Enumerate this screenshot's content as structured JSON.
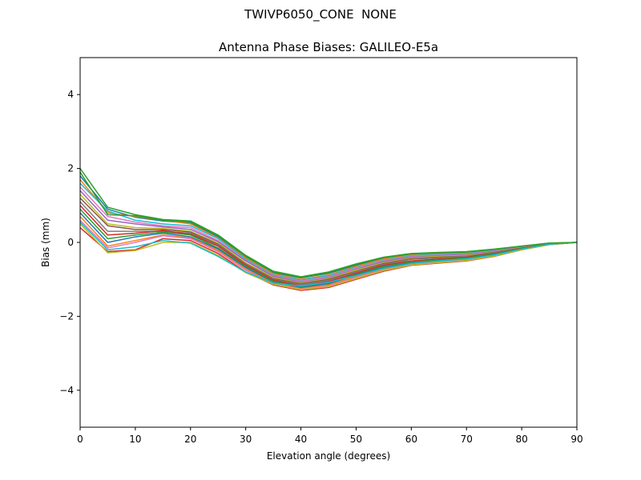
{
  "figure": {
    "suptitle": "TWIVP6050_CONE  NONE"
  },
  "chart_data": {
    "type": "line",
    "title": "Antenna Phase Biases: GALILEO-E5a",
    "xlabel": "Elevation angle (degrees)",
    "ylabel": "Bias (mm)",
    "xlim": [
      0,
      90
    ],
    "ylim": [
      -5,
      5
    ],
    "xticks": [
      0,
      10,
      20,
      30,
      40,
      50,
      60,
      70,
      80,
      90
    ],
    "yticks": [
      -4,
      -2,
      0,
      2,
      4
    ],
    "xtick_labels": [
      "0",
      "10",
      "20",
      "30",
      "40",
      "50",
      "60",
      "70",
      "80",
      "90"
    ],
    "ytick_labels": [
      "−4",
      "−2",
      "0",
      "2",
      "4"
    ],
    "grid": false,
    "legend": "none",
    "x": [
      0,
      5,
      10,
      15,
      20,
      25,
      30,
      35,
      40,
      45,
      50,
      55,
      60,
      65,
      70,
      75,
      80,
      85,
      90
    ],
    "series": [
      {
        "color": "#2ca02c",
        "values": [
          2.0,
          0.95,
          0.75,
          0.62,
          0.58,
          0.2,
          -0.35,
          -0.78,
          -0.93,
          -0.8,
          -0.58,
          -0.4,
          -0.3,
          -0.27,
          -0.25,
          -0.18,
          -0.1,
          -0.02,
          0.0
        ]
      },
      {
        "color": "#1f77b4",
        "values": [
          1.8,
          0.9,
          0.68,
          0.58,
          0.52,
          0.15,
          -0.4,
          -0.82,
          -0.96,
          -0.84,
          -0.62,
          -0.42,
          -0.32,
          -0.29,
          -0.27,
          -0.2,
          -0.11,
          -0.03,
          0.0
        ]
      },
      {
        "color": "#ff7f0e",
        "values": [
          1.7,
          0.8,
          0.7,
          0.6,
          0.5,
          0.12,
          -0.42,
          -0.85,
          -1.0,
          -0.88,
          -0.65,
          -0.45,
          -0.34,
          -0.3,
          -0.28,
          -0.21,
          -0.12,
          -0.03,
          0.0
        ]
      },
      {
        "color": "#17becf",
        "values": [
          1.6,
          0.85,
          0.6,
          0.5,
          0.45,
          0.1,
          -0.45,
          -0.88,
          -1.02,
          -0.9,
          -0.68,
          -0.48,
          -0.36,
          -0.32,
          -0.3,
          -0.22,
          -0.12,
          -0.03,
          0.0
        ]
      },
      {
        "color": "#e377c2",
        "values": [
          1.5,
          0.7,
          0.55,
          0.45,
          0.4,
          0.05,
          -0.48,
          -0.9,
          -1.05,
          -0.93,
          -0.7,
          -0.5,
          -0.38,
          -0.34,
          -0.32,
          -0.23,
          -0.13,
          -0.04,
          0.0
        ]
      },
      {
        "color": "#9467bd",
        "values": [
          1.4,
          0.6,
          0.5,
          0.42,
          0.35,
          0.02,
          -0.5,
          -0.92,
          -1.08,
          -0.96,
          -0.73,
          -0.52,
          -0.4,
          -0.36,
          -0.33,
          -0.24,
          -0.13,
          -0.04,
          0.0
        ]
      },
      {
        "color": "#bcbd22",
        "values": [
          1.3,
          0.5,
          0.4,
          0.38,
          0.3,
          -0.02,
          -0.55,
          -0.95,
          -1.1,
          -0.98,
          -0.75,
          -0.55,
          -0.42,
          -0.38,
          -0.35,
          -0.26,
          -0.14,
          -0.04,
          0.0
        ]
      },
      {
        "color": "#8c564b",
        "values": [
          1.2,
          0.45,
          0.35,
          0.35,
          0.28,
          -0.05,
          -0.58,
          -0.98,
          -1.12,
          -1.0,
          -0.78,
          -0.57,
          -0.44,
          -0.4,
          -0.37,
          -0.27,
          -0.15,
          -0.04,
          0.0
        ]
      },
      {
        "color": "#7f7f7f",
        "values": [
          1.1,
          0.3,
          0.3,
          0.3,
          0.25,
          -0.08,
          -0.6,
          -1.0,
          -1.15,
          -1.03,
          -0.8,
          -0.6,
          -0.46,
          -0.42,
          -0.38,
          -0.28,
          -0.15,
          -0.05,
          0.0
        ]
      },
      {
        "color": "#d62728",
        "values": [
          1.0,
          0.2,
          0.25,
          0.32,
          0.22,
          -0.1,
          -0.62,
          -1.02,
          -1.18,
          -1.06,
          -0.83,
          -0.62,
          -0.5,
          -0.45,
          -0.4,
          -0.3,
          -0.16,
          -0.05,
          0.0
        ]
      },
      {
        "color": "#2ca02c",
        "values": [
          0.9,
          0.1,
          0.2,
          0.28,
          0.2,
          -0.15,
          -0.65,
          -1.05,
          -1.2,
          -1.1,
          -0.86,
          -0.65,
          -0.53,
          -0.47,
          -0.42,
          -0.31,
          -0.17,
          -0.05,
          0.0
        ]
      },
      {
        "color": "#1f77b4",
        "values": [
          0.8,
          0.0,
          0.15,
          0.25,
          0.15,
          -0.18,
          -0.68,
          -1.08,
          -1.22,
          -1.12,
          -0.88,
          -0.68,
          -0.56,
          -0.5,
          -0.45,
          -0.33,
          -0.18,
          -0.06,
          0.0
        ]
      },
      {
        "color": "#ff7f0e",
        "values": [
          0.7,
          -0.1,
          0.05,
          0.2,
          0.12,
          -0.22,
          -0.72,
          -1.1,
          -1.25,
          -1.15,
          -0.92,
          -0.72,
          -0.58,
          -0.52,
          -0.47,
          -0.35,
          -0.19,
          -0.06,
          0.0
        ]
      },
      {
        "color": "#e377c2",
        "values": [
          0.6,
          -0.15,
          0.0,
          0.18,
          0.1,
          -0.25,
          -0.75,
          -1.12,
          -1.27,
          -1.18,
          -0.95,
          -0.75,
          -0.6,
          -0.54,
          -0.48,
          -0.36,
          -0.19,
          -0.06,
          0.0
        ]
      },
      {
        "color": "#d62728",
        "values": [
          0.4,
          -0.25,
          -0.2,
          0.1,
          0.05,
          -0.3,
          -0.8,
          -1.15,
          -1.3,
          -1.22,
          -1.0,
          -0.78,
          -0.62,
          -0.56,
          -0.5,
          -0.38,
          -0.2,
          -0.06,
          0.0
        ]
      },
      {
        "color": "#bcbd22",
        "values": [
          0.5,
          -0.28,
          -0.22,
          0.0,
          0.0,
          -0.35,
          -0.82,
          -1.13,
          -1.28,
          -1.2,
          -0.98,
          -0.76,
          -0.61,
          -0.55,
          -0.49,
          -0.37,
          -0.2,
          -0.06,
          0.0
        ]
      },
      {
        "color": "#17becf",
        "values": [
          0.55,
          -0.2,
          -0.12,
          0.05,
          -0.02,
          -0.38,
          -0.8,
          -1.1,
          -1.18,
          -1.08,
          -0.9,
          -0.7,
          -0.57,
          -0.5,
          -0.45,
          -0.34,
          -0.18,
          -0.05,
          0.0
        ]
      },
      {
        "color": "#2ca02c",
        "values": [
          1.9,
          0.75,
          0.72,
          0.6,
          0.55,
          0.18,
          -0.38,
          -0.8,
          -0.95,
          -0.82,
          -0.6,
          -0.41,
          -0.31,
          -0.28,
          -0.26,
          -0.19,
          -0.1,
          -0.02,
          0.0
        ]
      }
    ]
  }
}
